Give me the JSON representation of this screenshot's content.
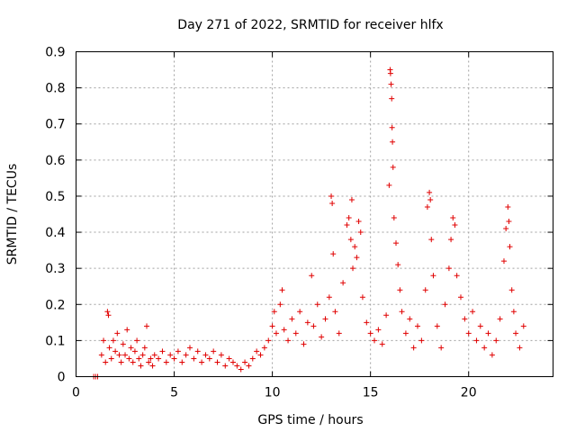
{
  "chart_data": {
    "type": "scatter",
    "title": "Day 271 of 2022, SRMTID for receiver hlfx",
    "xlabel": "GPS time / hours",
    "ylabel": "SRMTID / TECUs",
    "xlim": [
      0,
      24.3
    ],
    "ylim": [
      0,
      0.9
    ],
    "xticks": [
      0,
      5,
      10,
      15,
      20
    ],
    "xtick_labels": [
      "0",
      "5",
      "10",
      "15",
      "20"
    ],
    "yticks": [
      0,
      0.1,
      0.2,
      0.3,
      0.4,
      0.5,
      0.6,
      0.7,
      0.8,
      0.9
    ],
    "ytick_labels": [
      "0",
      "0.1",
      "0.2",
      "0.3",
      "0.4",
      "0.5",
      "0.6",
      "0.7",
      "0.8",
      "0.9"
    ],
    "grid": true,
    "marker": "+",
    "color": "#e00000",
    "series": [
      {
        "name": "SRMTID",
        "points": [
          [
            0.9,
            0.0
          ],
          [
            1.0,
            0.0
          ],
          [
            1.1,
            0.0
          ],
          [
            1.3,
            0.06
          ],
          [
            1.4,
            0.1
          ],
          [
            1.5,
            0.04
          ],
          [
            1.6,
            0.18
          ],
          [
            1.65,
            0.17
          ],
          [
            1.7,
            0.08
          ],
          [
            1.8,
            0.05
          ],
          [
            1.9,
            0.1
          ],
          [
            2.0,
            0.07
          ],
          [
            2.1,
            0.12
          ],
          [
            2.2,
            0.06
          ],
          [
            2.3,
            0.04
          ],
          [
            2.4,
            0.09
          ],
          [
            2.5,
            0.06
          ],
          [
            2.6,
            0.13
          ],
          [
            2.7,
            0.05
          ],
          [
            2.8,
            0.08
          ],
          [
            2.9,
            0.04
          ],
          [
            3.0,
            0.07
          ],
          [
            3.1,
            0.1
          ],
          [
            3.2,
            0.05
          ],
          [
            3.3,
            0.03
          ],
          [
            3.4,
            0.06
          ],
          [
            3.5,
            0.08
          ],
          [
            3.6,
            0.14
          ],
          [
            3.7,
            0.04
          ],
          [
            3.8,
            0.05
          ],
          [
            3.9,
            0.03
          ],
          [
            4.0,
            0.06
          ],
          [
            4.2,
            0.05
          ],
          [
            4.4,
            0.07
          ],
          [
            4.6,
            0.04
          ],
          [
            4.8,
            0.06
          ],
          [
            5.0,
            0.05
          ],
          [
            5.2,
            0.07
          ],
          [
            5.4,
            0.04
          ],
          [
            5.6,
            0.06
          ],
          [
            5.8,
            0.08
          ],
          [
            6.0,
            0.05
          ],
          [
            6.2,
            0.07
          ],
          [
            6.4,
            0.04
          ],
          [
            6.6,
            0.06
          ],
          [
            6.8,
            0.05
          ],
          [
            7.0,
            0.07
          ],
          [
            7.2,
            0.04
          ],
          [
            7.4,
            0.06
          ],
          [
            7.6,
            0.03
          ],
          [
            7.8,
            0.05
          ],
          [
            8.0,
            0.04
          ],
          [
            8.2,
            0.03
          ],
          [
            8.4,
            0.02
          ],
          [
            8.6,
            0.04
          ],
          [
            8.8,
            0.03
          ],
          [
            9.0,
            0.05
          ],
          [
            9.2,
            0.07
          ],
          [
            9.4,
            0.06
          ],
          [
            9.6,
            0.08
          ],
          [
            9.8,
            0.1
          ],
          [
            10.0,
            0.14
          ],
          [
            10.1,
            0.18
          ],
          [
            10.2,
            0.12
          ],
          [
            10.4,
            0.2
          ],
          [
            10.5,
            0.24
          ],
          [
            10.6,
            0.13
          ],
          [
            10.8,
            0.1
          ],
          [
            11.0,
            0.16
          ],
          [
            11.2,
            0.12
          ],
          [
            11.4,
            0.18
          ],
          [
            11.6,
            0.09
          ],
          [
            11.8,
            0.15
          ],
          [
            12.0,
            0.28
          ],
          [
            12.1,
            0.14
          ],
          [
            12.3,
            0.2
          ],
          [
            12.5,
            0.11
          ],
          [
            12.7,
            0.16
          ],
          [
            12.9,
            0.22
          ],
          [
            13.0,
            0.5
          ],
          [
            13.05,
            0.48
          ],
          [
            13.1,
            0.34
          ],
          [
            13.2,
            0.18
          ],
          [
            13.4,
            0.12
          ],
          [
            13.6,
            0.26
          ],
          [
            13.8,
            0.42
          ],
          [
            13.9,
            0.44
          ],
          [
            14.0,
            0.38
          ],
          [
            14.05,
            0.49
          ],
          [
            14.1,
            0.3
          ],
          [
            14.2,
            0.36
          ],
          [
            14.3,
            0.33
          ],
          [
            14.4,
            0.43
          ],
          [
            14.5,
            0.4
          ],
          [
            14.6,
            0.22
          ],
          [
            14.8,
            0.15
          ],
          [
            15.0,
            0.12
          ],
          [
            15.2,
            0.1
          ],
          [
            15.4,
            0.13
          ],
          [
            15.6,
            0.09
          ],
          [
            15.8,
            0.17
          ],
          [
            15.95,
            0.53
          ],
          [
            16.0,
            0.85
          ],
          [
            16.02,
            0.84
          ],
          [
            16.05,
            0.81
          ],
          [
            16.08,
            0.77
          ],
          [
            16.1,
            0.69
          ],
          [
            16.12,
            0.65
          ],
          [
            16.15,
            0.58
          ],
          [
            16.2,
            0.44
          ],
          [
            16.3,
            0.37
          ],
          [
            16.4,
            0.31
          ],
          [
            16.5,
            0.24
          ],
          [
            16.6,
            0.18
          ],
          [
            16.8,
            0.12
          ],
          [
            17.0,
            0.16
          ],
          [
            17.2,
            0.08
          ],
          [
            17.4,
            0.14
          ],
          [
            17.6,
            0.1
          ],
          [
            17.8,
            0.24
          ],
          [
            17.9,
            0.47
          ],
          [
            18.0,
            0.51
          ],
          [
            18.05,
            0.49
          ],
          [
            18.1,
            0.38
          ],
          [
            18.2,
            0.28
          ],
          [
            18.4,
            0.14
          ],
          [
            18.6,
            0.08
          ],
          [
            18.8,
            0.2
          ],
          [
            19.0,
            0.3
          ],
          [
            19.1,
            0.38
          ],
          [
            19.2,
            0.44
          ],
          [
            19.3,
            0.42
          ],
          [
            19.4,
            0.28
          ],
          [
            19.6,
            0.22
          ],
          [
            19.8,
            0.16
          ],
          [
            20.0,
            0.12
          ],
          [
            20.2,
            0.18
          ],
          [
            20.4,
            0.1
          ],
          [
            20.6,
            0.14
          ],
          [
            20.8,
            0.08
          ],
          [
            21.0,
            0.12
          ],
          [
            21.2,
            0.06
          ],
          [
            21.4,
            0.1
          ],
          [
            21.6,
            0.16
          ],
          [
            21.8,
            0.32
          ],
          [
            21.9,
            0.41
          ],
          [
            22.0,
            0.47
          ],
          [
            22.05,
            0.43
          ],
          [
            22.1,
            0.36
          ],
          [
            22.2,
            0.24
          ],
          [
            22.3,
            0.18
          ],
          [
            22.4,
            0.12
          ],
          [
            22.6,
            0.08
          ],
          [
            22.8,
            0.14
          ]
        ]
      }
    ]
  }
}
